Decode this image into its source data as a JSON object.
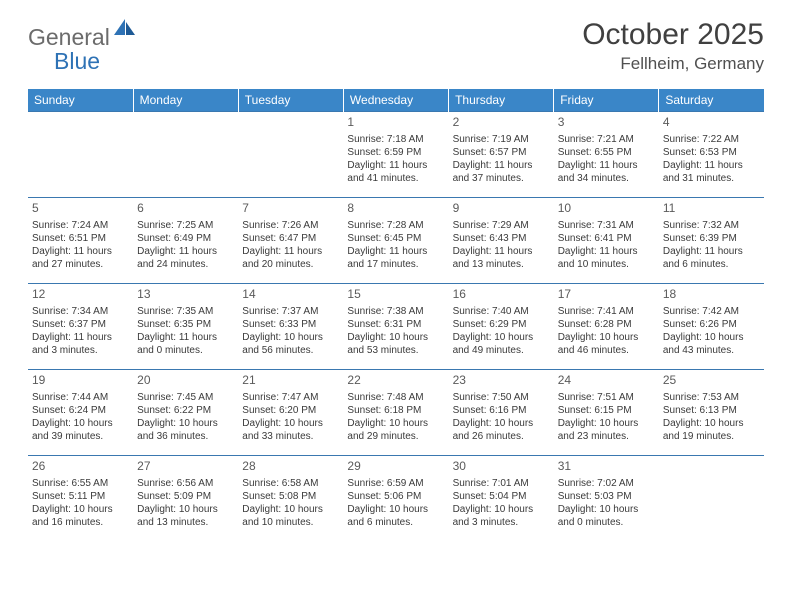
{
  "brand": {
    "general": "General",
    "blue": "Blue"
  },
  "title": {
    "month": "October 2025",
    "location": "Fellheim, Germany"
  },
  "colors": {
    "header_bg": "#3a86c8",
    "header_text": "#ffffff",
    "row_border": "#3a78b0",
    "text": "#3a3a3a",
    "logo_gray": "#6b6b6b",
    "logo_blue": "#2e72b5",
    "background": "#ffffff"
  },
  "weekdays": [
    "Sunday",
    "Monday",
    "Tuesday",
    "Wednesday",
    "Thursday",
    "Friday",
    "Saturday"
  ],
  "weeks": [
    [
      null,
      null,
      null,
      {
        "n": "1",
        "sr": "Sunrise: 7:18 AM",
        "ss": "Sunset: 6:59 PM",
        "d1": "Daylight: 11 hours",
        "d2": "and 41 minutes."
      },
      {
        "n": "2",
        "sr": "Sunrise: 7:19 AM",
        "ss": "Sunset: 6:57 PM",
        "d1": "Daylight: 11 hours",
        "d2": "and 37 minutes."
      },
      {
        "n": "3",
        "sr": "Sunrise: 7:21 AM",
        "ss": "Sunset: 6:55 PM",
        "d1": "Daylight: 11 hours",
        "d2": "and 34 minutes."
      },
      {
        "n": "4",
        "sr": "Sunrise: 7:22 AM",
        "ss": "Sunset: 6:53 PM",
        "d1": "Daylight: 11 hours",
        "d2": "and 31 minutes."
      }
    ],
    [
      {
        "n": "5",
        "sr": "Sunrise: 7:24 AM",
        "ss": "Sunset: 6:51 PM",
        "d1": "Daylight: 11 hours",
        "d2": "and 27 minutes."
      },
      {
        "n": "6",
        "sr": "Sunrise: 7:25 AM",
        "ss": "Sunset: 6:49 PM",
        "d1": "Daylight: 11 hours",
        "d2": "and 24 minutes."
      },
      {
        "n": "7",
        "sr": "Sunrise: 7:26 AM",
        "ss": "Sunset: 6:47 PM",
        "d1": "Daylight: 11 hours",
        "d2": "and 20 minutes."
      },
      {
        "n": "8",
        "sr": "Sunrise: 7:28 AM",
        "ss": "Sunset: 6:45 PM",
        "d1": "Daylight: 11 hours",
        "d2": "and 17 minutes."
      },
      {
        "n": "9",
        "sr": "Sunrise: 7:29 AM",
        "ss": "Sunset: 6:43 PM",
        "d1": "Daylight: 11 hours",
        "d2": "and 13 minutes."
      },
      {
        "n": "10",
        "sr": "Sunrise: 7:31 AM",
        "ss": "Sunset: 6:41 PM",
        "d1": "Daylight: 11 hours",
        "d2": "and 10 minutes."
      },
      {
        "n": "11",
        "sr": "Sunrise: 7:32 AM",
        "ss": "Sunset: 6:39 PM",
        "d1": "Daylight: 11 hours",
        "d2": "and 6 minutes."
      }
    ],
    [
      {
        "n": "12",
        "sr": "Sunrise: 7:34 AM",
        "ss": "Sunset: 6:37 PM",
        "d1": "Daylight: 11 hours",
        "d2": "and 3 minutes."
      },
      {
        "n": "13",
        "sr": "Sunrise: 7:35 AM",
        "ss": "Sunset: 6:35 PM",
        "d1": "Daylight: 11 hours",
        "d2": "and 0 minutes."
      },
      {
        "n": "14",
        "sr": "Sunrise: 7:37 AM",
        "ss": "Sunset: 6:33 PM",
        "d1": "Daylight: 10 hours",
        "d2": "and 56 minutes."
      },
      {
        "n": "15",
        "sr": "Sunrise: 7:38 AM",
        "ss": "Sunset: 6:31 PM",
        "d1": "Daylight: 10 hours",
        "d2": "and 53 minutes."
      },
      {
        "n": "16",
        "sr": "Sunrise: 7:40 AM",
        "ss": "Sunset: 6:29 PM",
        "d1": "Daylight: 10 hours",
        "d2": "and 49 minutes."
      },
      {
        "n": "17",
        "sr": "Sunrise: 7:41 AM",
        "ss": "Sunset: 6:28 PM",
        "d1": "Daylight: 10 hours",
        "d2": "and 46 minutes."
      },
      {
        "n": "18",
        "sr": "Sunrise: 7:42 AM",
        "ss": "Sunset: 6:26 PM",
        "d1": "Daylight: 10 hours",
        "d2": "and 43 minutes."
      }
    ],
    [
      {
        "n": "19",
        "sr": "Sunrise: 7:44 AM",
        "ss": "Sunset: 6:24 PM",
        "d1": "Daylight: 10 hours",
        "d2": "and 39 minutes."
      },
      {
        "n": "20",
        "sr": "Sunrise: 7:45 AM",
        "ss": "Sunset: 6:22 PM",
        "d1": "Daylight: 10 hours",
        "d2": "and 36 minutes."
      },
      {
        "n": "21",
        "sr": "Sunrise: 7:47 AM",
        "ss": "Sunset: 6:20 PM",
        "d1": "Daylight: 10 hours",
        "d2": "and 33 minutes."
      },
      {
        "n": "22",
        "sr": "Sunrise: 7:48 AM",
        "ss": "Sunset: 6:18 PM",
        "d1": "Daylight: 10 hours",
        "d2": "and 29 minutes."
      },
      {
        "n": "23",
        "sr": "Sunrise: 7:50 AM",
        "ss": "Sunset: 6:16 PM",
        "d1": "Daylight: 10 hours",
        "d2": "and 26 minutes."
      },
      {
        "n": "24",
        "sr": "Sunrise: 7:51 AM",
        "ss": "Sunset: 6:15 PM",
        "d1": "Daylight: 10 hours",
        "d2": "and 23 minutes."
      },
      {
        "n": "25",
        "sr": "Sunrise: 7:53 AM",
        "ss": "Sunset: 6:13 PM",
        "d1": "Daylight: 10 hours",
        "d2": "and 19 minutes."
      }
    ],
    [
      {
        "n": "26",
        "sr": "Sunrise: 6:55 AM",
        "ss": "Sunset: 5:11 PM",
        "d1": "Daylight: 10 hours",
        "d2": "and 16 minutes."
      },
      {
        "n": "27",
        "sr": "Sunrise: 6:56 AM",
        "ss": "Sunset: 5:09 PM",
        "d1": "Daylight: 10 hours",
        "d2": "and 13 minutes."
      },
      {
        "n": "28",
        "sr": "Sunrise: 6:58 AM",
        "ss": "Sunset: 5:08 PM",
        "d1": "Daylight: 10 hours",
        "d2": "and 10 minutes."
      },
      {
        "n": "29",
        "sr": "Sunrise: 6:59 AM",
        "ss": "Sunset: 5:06 PM",
        "d1": "Daylight: 10 hours",
        "d2": "and 6 minutes."
      },
      {
        "n": "30",
        "sr": "Sunrise: 7:01 AM",
        "ss": "Sunset: 5:04 PM",
        "d1": "Daylight: 10 hours",
        "d2": "and 3 minutes."
      },
      {
        "n": "31",
        "sr": "Sunrise: 7:02 AM",
        "ss": "Sunset: 5:03 PM",
        "d1": "Daylight: 10 hours",
        "d2": "and 0 minutes."
      },
      null
    ]
  ]
}
